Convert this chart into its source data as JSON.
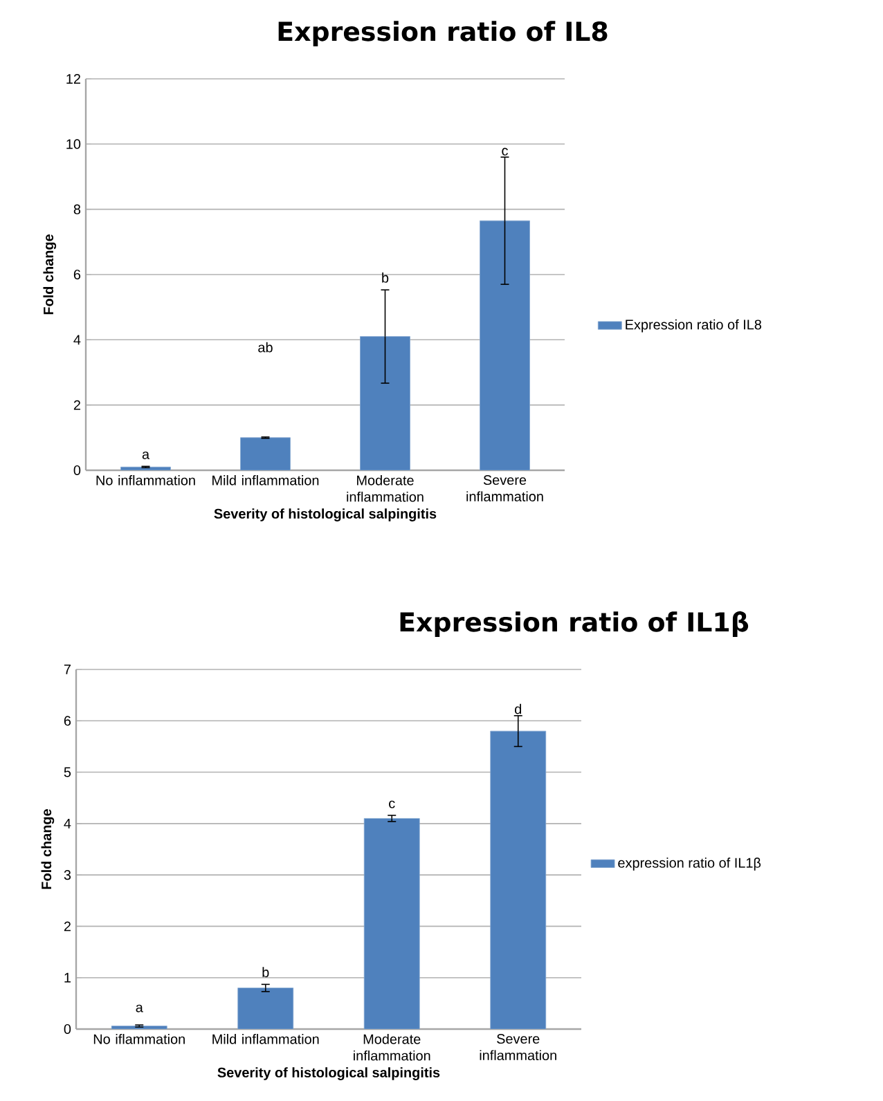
{
  "chart_data": [
    {
      "type": "bar",
      "title": "Expression ratio of IL8",
      "xlabel": "Severity of histological salpingitis",
      "ylabel": "Fold change",
      "categories": [
        "No inflammation",
        "Mild inflammation",
        "Moderate inflammation",
        "Severe inflammation"
      ],
      "series": [
        {
          "name": "Expression ratio of IL8",
          "color": "#4f81bd",
          "values": [
            0.1,
            1.0,
            4.1,
            7.65
          ],
          "errors": [
            0.02,
            0.02,
            1.43,
            1.95
          ]
        }
      ],
      "ylim": [
        0,
        12
      ],
      "yticks": [
        0,
        2,
        4,
        6,
        8,
        10,
        12
      ],
      "grid": "y",
      "legend": "right",
      "annotations": [
        "a",
        "ab",
        "b",
        "c"
      ]
    },
    {
      "type": "bar",
      "title": "Expression ratio of IL1β",
      "xlabel": "Severity of histological salpingitis",
      "ylabel": "Fold change",
      "categories": [
        "No iflammation",
        "Mild inflammation",
        "Moderate inflammation",
        "Severe inflammation"
      ],
      "series": [
        {
          "name": "expression ratio of IL1β",
          "color": "#4f81bd",
          "values": [
            0.06,
            0.8,
            4.1,
            5.8
          ],
          "errors": [
            0.02,
            0.07,
            0.06,
            0.3
          ]
        }
      ],
      "ylim": [
        0,
        7
      ],
      "yticks": [
        0,
        1,
        2,
        3,
        4,
        5,
        6,
        7
      ],
      "grid": "y",
      "legend": "right",
      "annotations": [
        "a",
        "b",
        "c",
        "d"
      ]
    }
  ]
}
